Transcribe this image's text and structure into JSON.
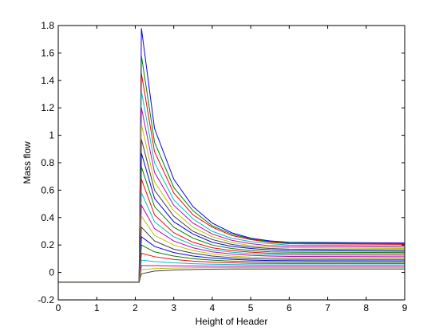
{
  "chart_data": {
    "type": "line",
    "title": "",
    "xlabel": "Height of Header",
    "ylabel": "Mass flow",
    "xlim": [
      0,
      9
    ],
    "ylim": [
      -0.2,
      1.8
    ],
    "xticks": [
      0,
      1,
      2,
      3,
      4,
      5,
      6,
      7,
      8,
      9
    ],
    "xtick_labels": [
      "0",
      "1",
      "2",
      "3",
      "4",
      "5",
      "6",
      "7",
      "8",
      "9"
    ],
    "yticks": [
      -0.2,
      0,
      0.2,
      0.4,
      0.6,
      0.8,
      1,
      1.2,
      1.4,
      1.6,
      1.8
    ],
    "ytick_labels": [
      "-0.2",
      "0",
      "0.2",
      "0.4",
      "0.6",
      "0.8",
      "1",
      "1.2",
      "1.4",
      "1.6",
      "1.8"
    ],
    "grid": false,
    "legend": "none",
    "series_colors": [
      "#0000ff",
      "#007f00",
      "#ff0000",
      "#00bfbf",
      "#bf00bf",
      "#bfbf00",
      "#3f3f3f"
    ],
    "series": [
      {
        "x": [
          0,
          2.1,
          2.1,
          2.16,
          2.5,
          3.0,
          3.5,
          4.0,
          4.5,
          5.0,
          5.5,
          6.0,
          9.0
        ],
        "y": [
          -0.07,
          -0.07,
          -0.07,
          1.78,
          1.05,
          0.68,
          0.48,
          0.36,
          0.29,
          0.25,
          0.23,
          0.22,
          0.215
        ]
      },
      {
        "x": [
          0,
          2.1,
          2.1,
          2.16,
          2.5,
          3.0,
          3.5,
          4.0,
          4.5,
          5.0,
          5.5,
          6.0,
          9.0
        ],
        "y": [
          -0.07,
          -0.07,
          -0.07,
          1.58,
          0.95,
          0.62,
          0.45,
          0.34,
          0.28,
          0.245,
          0.225,
          0.215,
          0.21
        ]
      },
      {
        "x": [
          0,
          2.1,
          2.1,
          2.16,
          2.5,
          3.0,
          3.5,
          4.0,
          4.5,
          5.0,
          5.5,
          6.0,
          9.0
        ],
        "y": [
          -0.07,
          -0.07,
          -0.07,
          1.45,
          0.88,
          0.58,
          0.42,
          0.33,
          0.27,
          0.24,
          0.22,
          0.21,
          0.205
        ]
      },
      {
        "x": [
          0,
          2.1,
          2.1,
          2.16,
          2.5,
          3.0,
          3.5,
          4.0,
          4.5,
          5.0,
          5.5,
          6.0,
          9.0
        ],
        "y": [
          -0.07,
          -0.07,
          -0.07,
          1.32,
          0.8,
          0.53,
          0.39,
          0.3,
          0.25,
          0.225,
          0.21,
          0.2,
          0.195
        ]
      },
      {
        "x": [
          0,
          2.1,
          2.1,
          2.16,
          2.5,
          3.0,
          3.5,
          4.0,
          4.5,
          5.0,
          5.5,
          6.0,
          9.0
        ],
        "y": [
          -0.07,
          -0.07,
          -0.07,
          1.2,
          0.73,
          0.49,
          0.36,
          0.28,
          0.235,
          0.21,
          0.195,
          0.19,
          0.185
        ]
      },
      {
        "x": [
          0,
          2.1,
          2.1,
          2.16,
          2.5,
          3.0,
          3.5,
          4.0,
          4.5,
          5.0,
          5.5,
          6.0,
          9.0
        ],
        "y": [
          -0.07,
          -0.07,
          -0.07,
          1.08,
          0.66,
          0.45,
          0.33,
          0.26,
          0.22,
          0.195,
          0.185,
          0.18,
          0.175
        ]
      },
      {
        "x": [
          0,
          2.1,
          2.1,
          2.16,
          2.5,
          3.0,
          3.5,
          4.0,
          4.5,
          5.0,
          5.5,
          6.0,
          9.0
        ],
        "y": [
          -0.07,
          -0.07,
          -0.07,
          0.97,
          0.6,
          0.41,
          0.3,
          0.24,
          0.205,
          0.185,
          0.175,
          0.17,
          0.165
        ]
      },
      {
        "x": [
          0,
          2.1,
          2.1,
          2.16,
          2.5,
          3.0,
          3.5,
          4.0,
          4.5,
          5.0,
          5.5,
          6.0,
          9.0
        ],
        "y": [
          -0.07,
          -0.07,
          -0.07,
          0.87,
          0.54,
          0.37,
          0.28,
          0.22,
          0.19,
          0.175,
          0.165,
          0.16,
          0.155
        ]
      },
      {
        "x": [
          0,
          2.1,
          2.1,
          2.16,
          2.5,
          3.0,
          3.5,
          4.0,
          4.5,
          5.0,
          5.5,
          6.0,
          9.0
        ],
        "y": [
          -0.07,
          -0.07,
          -0.07,
          0.77,
          0.48,
          0.33,
          0.25,
          0.2,
          0.175,
          0.16,
          0.15,
          0.148,
          0.145
        ]
      },
      {
        "x": [
          0,
          2.1,
          2.1,
          2.16,
          2.5,
          3.0,
          3.5,
          4.0,
          4.5,
          5.0,
          5.5,
          6.0,
          9.0
        ],
        "y": [
          -0.07,
          -0.07,
          -0.07,
          0.68,
          0.42,
          0.29,
          0.22,
          0.18,
          0.16,
          0.148,
          0.14,
          0.137,
          0.135
        ]
      },
      {
        "x": [
          0,
          2.1,
          2.1,
          2.16,
          2.5,
          3.0,
          3.5,
          4.0,
          4.5,
          5.0,
          5.5,
          6.0,
          9.0
        ],
        "y": [
          -0.07,
          -0.07,
          -0.07,
          0.58,
          0.37,
          0.26,
          0.2,
          0.165,
          0.148,
          0.137,
          0.13,
          0.127,
          0.125
        ]
      },
      {
        "x": [
          0,
          2.1,
          2.1,
          2.16,
          2.5,
          3.0,
          3.5,
          4.0,
          4.5,
          5.0,
          5.5,
          6.0,
          9.0
        ],
        "y": [
          -0.07,
          -0.07,
          -0.07,
          0.49,
          0.32,
          0.23,
          0.18,
          0.15,
          0.135,
          0.125,
          0.12,
          0.117,
          0.115
        ]
      },
      {
        "x": [
          0,
          2.1,
          2.1,
          2.16,
          2.5,
          3.0,
          3.5,
          4.0,
          4.5,
          5.0,
          5.5,
          6.0,
          9.0
        ],
        "y": [
          -0.07,
          -0.07,
          -0.07,
          0.41,
          0.27,
          0.2,
          0.16,
          0.135,
          0.12,
          0.112,
          0.108,
          0.106,
          0.105
        ]
      },
      {
        "x": [
          0,
          2.1,
          2.1,
          2.16,
          2.5,
          3.0,
          3.5,
          4.0,
          4.5,
          5.0,
          5.5,
          6.0,
          9.0
        ],
        "y": [
          -0.07,
          -0.07,
          -0.07,
          0.33,
          0.23,
          0.17,
          0.14,
          0.12,
          0.108,
          0.1,
          0.097,
          0.096,
          0.095
        ]
      },
      {
        "x": [
          0,
          2.1,
          2.1,
          2.16,
          2.5,
          3.0,
          3.5,
          4.0,
          4.5,
          5.0,
          5.5,
          6.0,
          9.0
        ],
        "y": [
          -0.07,
          -0.07,
          -0.07,
          0.26,
          0.19,
          0.145,
          0.12,
          0.105,
          0.096,
          0.09,
          0.087,
          0.086,
          0.085
        ]
      },
      {
        "x": [
          0,
          2.1,
          2.1,
          2.16,
          2.5,
          3.0,
          3.5,
          4.0,
          4.5,
          5.0,
          5.5,
          6.0,
          9.0
        ],
        "y": [
          -0.07,
          -0.07,
          -0.07,
          0.2,
          0.15,
          0.12,
          0.1,
          0.09,
          0.083,
          0.079,
          0.077,
          0.076,
          0.075
        ]
      },
      {
        "x": [
          0,
          2.1,
          2.1,
          2.16,
          2.5,
          3.0,
          3.5,
          4.0,
          4.5,
          5.0,
          5.5,
          6.0,
          9.0
        ],
        "y": [
          -0.07,
          -0.07,
          -0.07,
          0.14,
          0.115,
          0.095,
          0.083,
          0.075,
          0.07,
          0.067,
          0.066,
          0.065,
          0.065
        ]
      },
      {
        "x": [
          0,
          2.1,
          2.1,
          2.16,
          2.5,
          3.0,
          3.5,
          4.0,
          4.5,
          5.0,
          5.5,
          6.0,
          9.0
        ],
        "y": [
          -0.07,
          -0.07,
          -0.07,
          0.09,
          0.08,
          0.07,
          0.064,
          0.06,
          0.058,
          0.056,
          0.055,
          0.055,
          0.055
        ]
      },
      {
        "x": [
          0,
          2.1,
          2.1,
          2.16,
          2.5,
          3.0,
          3.5,
          4.0,
          4.5,
          5.0,
          5.5,
          6.0,
          9.0
        ],
        "y": [
          -0.07,
          -0.07,
          -0.07,
          0.05,
          0.05,
          0.048,
          0.047,
          0.046,
          0.045,
          0.045,
          0.045,
          0.045,
          0.045
        ]
      },
      {
        "x": [
          0,
          2.1,
          2.1,
          2.16,
          2.5,
          3.0,
          3.5,
          4.0,
          4.5,
          5.0,
          5.5,
          6.0,
          9.0
        ],
        "y": [
          -0.07,
          -0.07,
          -0.07,
          0.02,
          0.028,
          0.032,
          0.034,
          0.035,
          0.035,
          0.035,
          0.035,
          0.035,
          0.035
        ]
      },
      {
        "x": [
          0,
          2.1,
          2.1,
          2.16,
          2.5,
          3.0,
          3.5,
          4.0,
          4.5,
          5.0,
          5.5,
          6.0,
          9.0
        ],
        "y": [
          -0.07,
          -0.07,
          -0.07,
          -0.01,
          0.01,
          0.018,
          0.022,
          0.024,
          0.025,
          0.025,
          0.025,
          0.025,
          0.025
        ]
      }
    ]
  }
}
